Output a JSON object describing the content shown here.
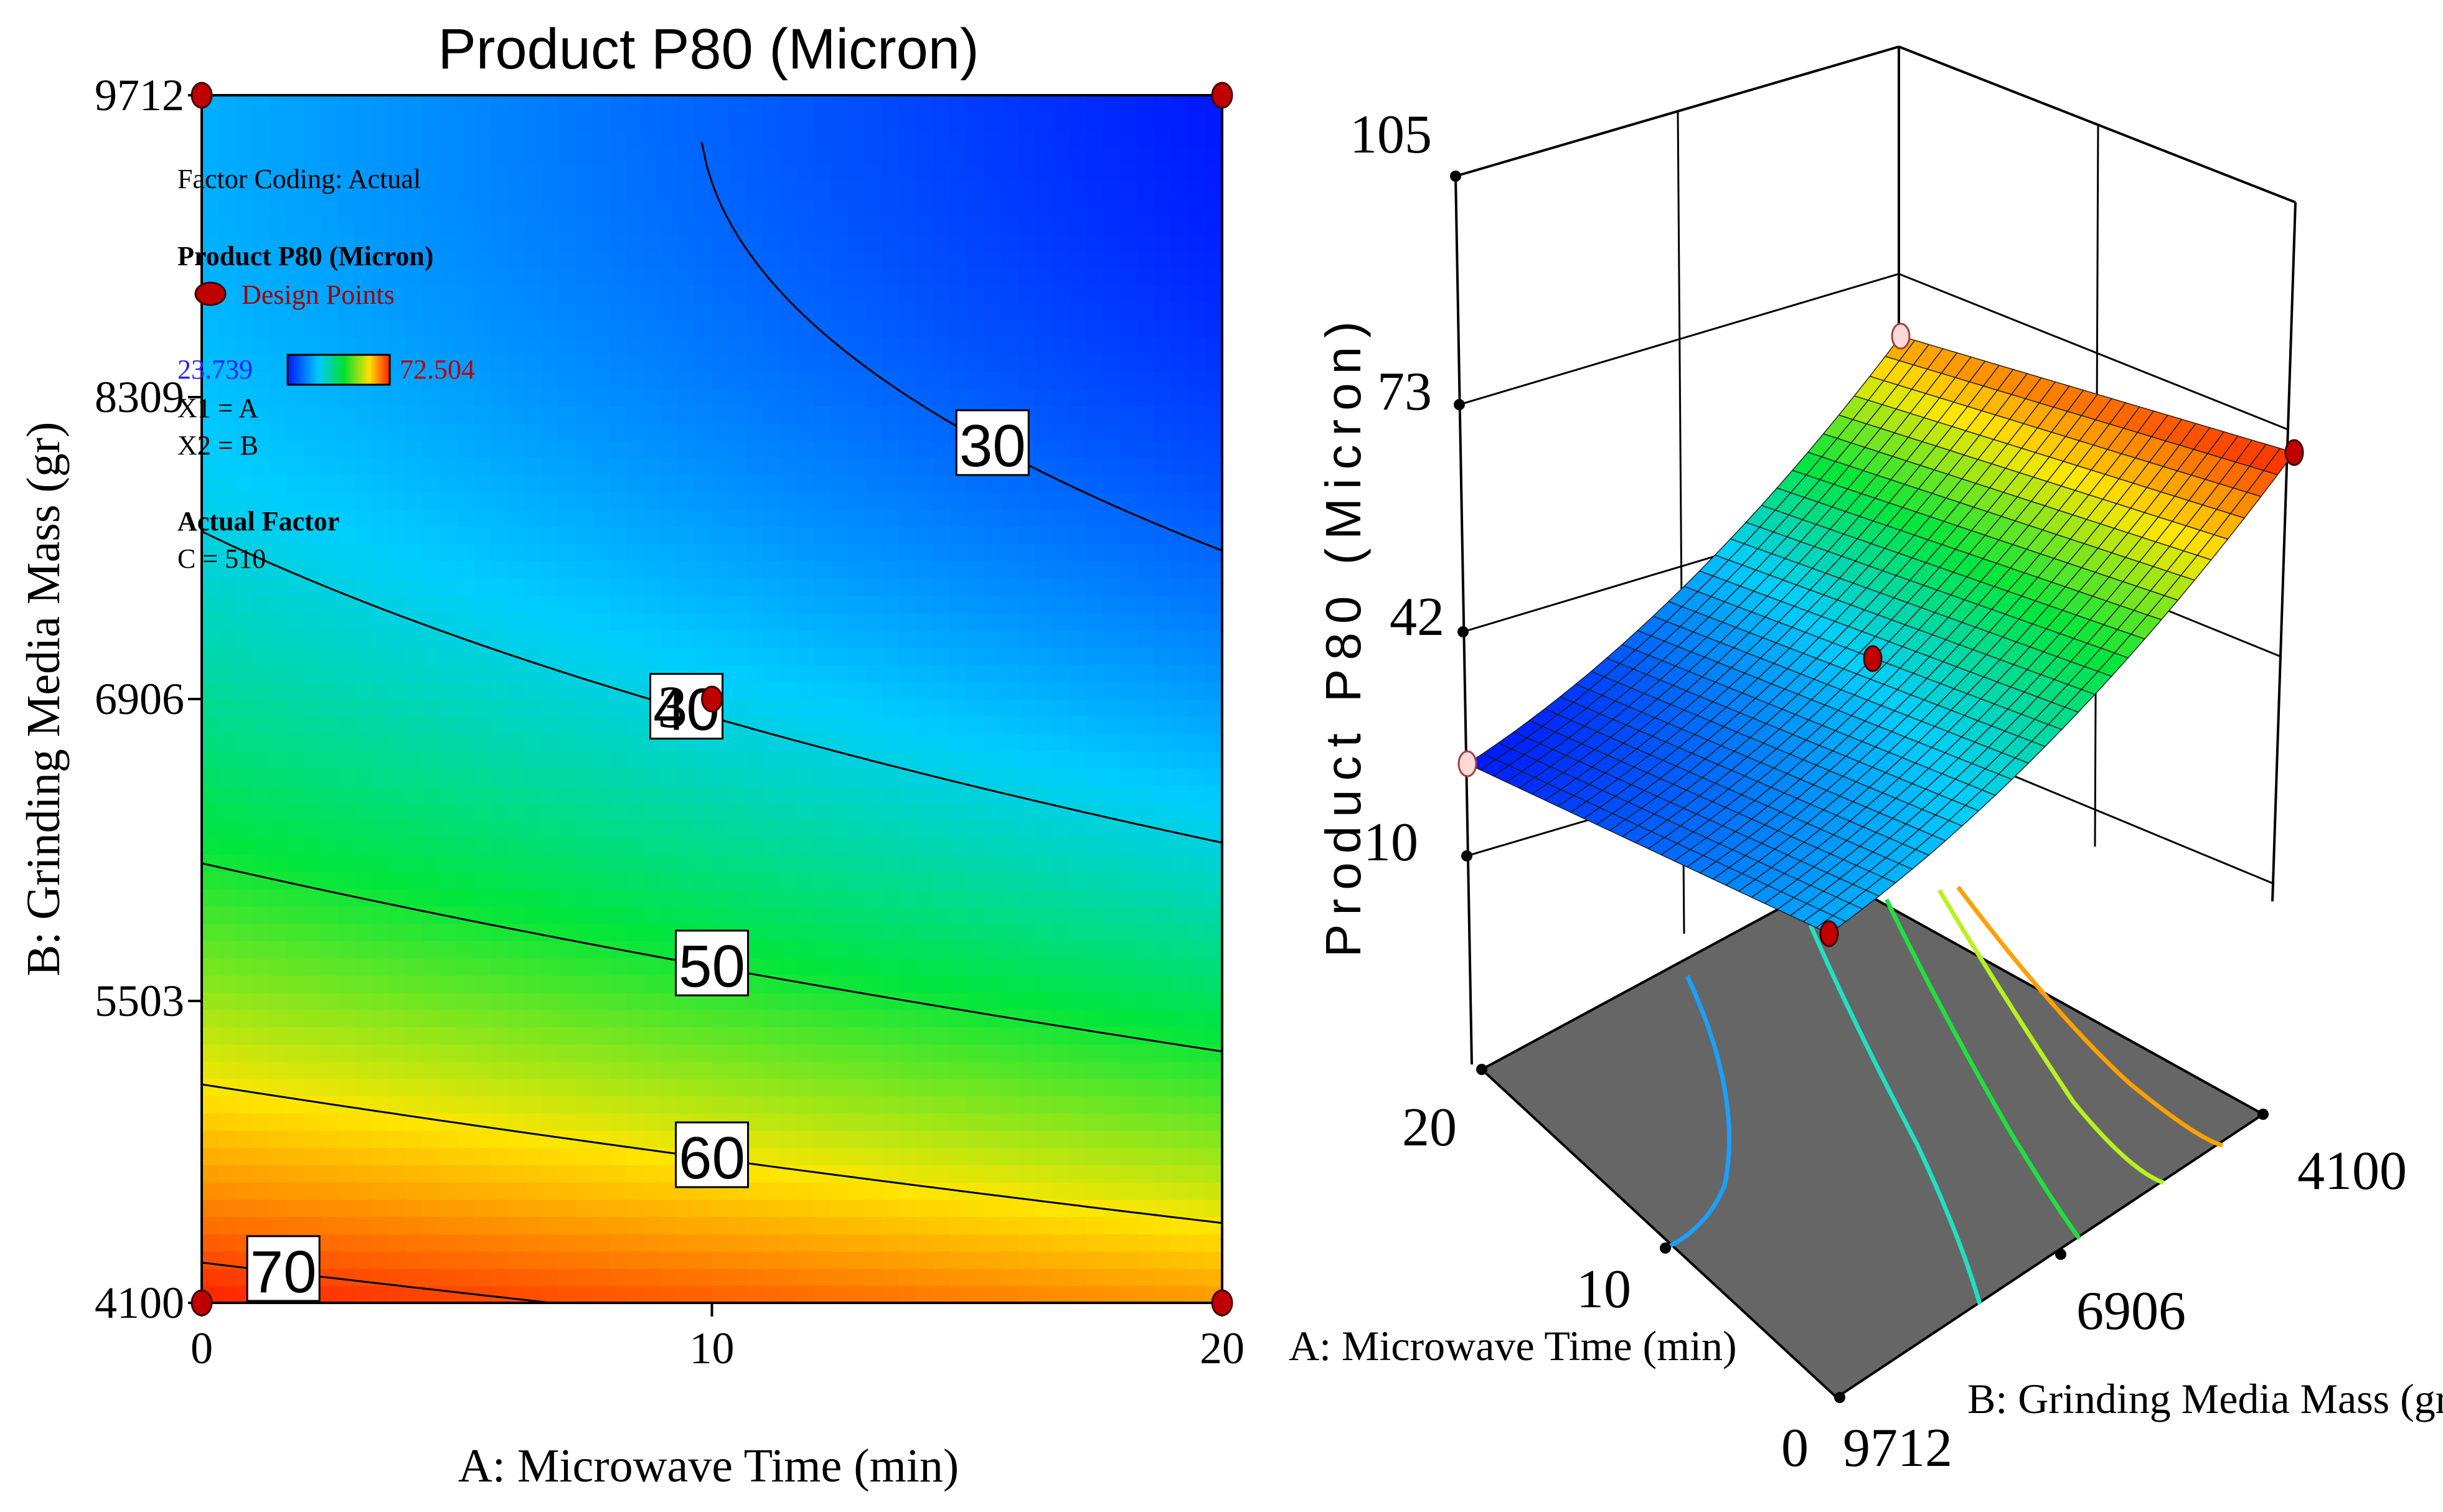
{
  "chart_data": [
    {
      "type": "contour",
      "title": "Product P80 (Micron)",
      "xlabel": "A: Microwave Time (min)",
      "ylabel": "B: Grinding Media Mass (gr)",
      "xlim": [
        0,
        20
      ],
      "ylim": [
        4100,
        9712
      ],
      "x_ticks": [
        "0",
        "10",
        "20"
      ],
      "y_ticks": [
        "4100",
        "5503",
        "6906",
        "8309",
        "9712"
      ],
      "contour_levels": [
        30,
        40,
        50,
        60,
        70
      ],
      "contour_labels": [
        "30",
        "40",
        "50",
        "60",
        "70"
      ],
      "design_points": [
        {
          "x": 0,
          "y": 4100
        },
        {
          "x": 20,
          "y": 4100
        },
        {
          "x": 0,
          "y": 9712
        },
        {
          "x": 20,
          "y": 9712
        },
        {
          "x": 10,
          "y": 6906
        }
      ],
      "center_point_count_label": "3",
      "info": {
        "coding": "Factor Coding: Actual",
        "response": "Product P80 (Micron)",
        "design_points_label": "Design Points",
        "range_min": "23.739",
        "range_max": "72.504",
        "x1": "X1 = A",
        "x2": "X2 = B",
        "actual_factor_title": "Actual Factor",
        "actual_factor_value": "C = 510"
      },
      "z_corners": {
        "a0_b4100": 72.5,
        "a20_b4100": 65.2,
        "a0_b9712": 36.0,
        "a20_b9712": 23.7,
        "a10_b6906": 39.4
      }
    },
    {
      "type": "surface3d",
      "zlabel": "Product P80 (Micron)",
      "z_ticks": [
        "10",
        "42",
        "73",
        "105"
      ],
      "zlim": [
        10,
        105
      ],
      "xlabel": "A: Microwave Time (min)",
      "x_ticks": [
        "0",
        "10",
        "20"
      ],
      "ylabel": "B: Grinding Media Mass (gr)",
      "y_ticks": [
        "9712",
        "6906",
        "4100"
      ]
    }
  ]
}
